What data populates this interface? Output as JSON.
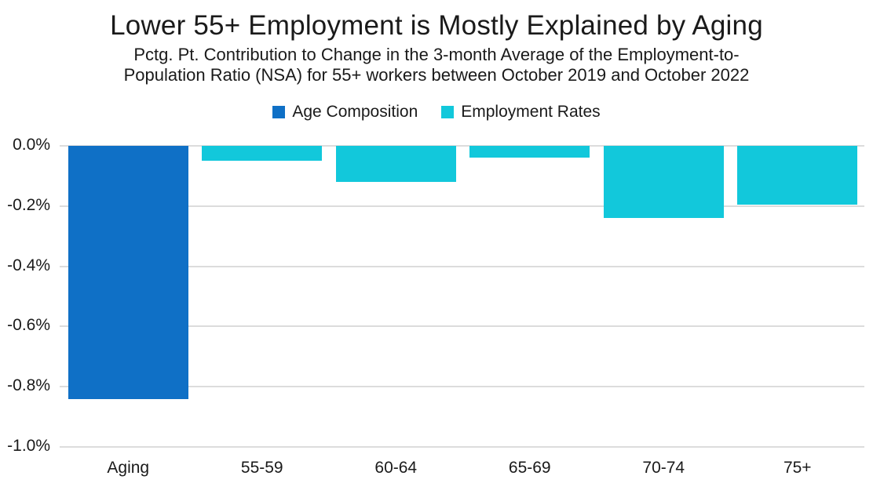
{
  "header": {
    "title": "Lower 55+ Employment is Mostly Explained by Aging",
    "subtitle_line1": "Pctg. Pt. Contribution to Change in the 3-month Average of the Employment-to-",
    "subtitle_line2": "Population Ratio (NSA) for 55+ workers between October 2019 and October 2022"
  },
  "colors": {
    "age_composition": "#0F70C6",
    "employment_rates": "#12C8DB",
    "gridline": "#DCDCDC",
    "text": "#1A1A1A"
  },
  "chart_data": {
    "type": "bar",
    "title": "Lower 55+ Employment is Mostly Explained by Aging",
    "subtitle": "Pctg. Pt. Contribution to Change in the 3-month Average of the Employment-to-Population Ratio (NSA) for 55+ workers between October 2019 and October 2022",
    "categories": [
      "Aging",
      "55-59",
      "60-64",
      "65-69",
      "70-74",
      "75+"
    ],
    "values": [
      -0.84,
      -0.05,
      -0.12,
      -0.04,
      -0.24,
      -0.195
    ],
    "series": [
      {
        "name": "Age Composition",
        "color": "#0F70C6"
      },
      {
        "name": "Employment Rates",
        "color": "#12C8DB"
      }
    ],
    "point_series": [
      0,
      1,
      1,
      1,
      1,
      1
    ],
    "ylim": [
      -1.0,
      0.0
    ],
    "yticks": [
      "0.0%",
      "-0.2%",
      "-0.4%",
      "-0.6%",
      "-0.8%",
      "-1.0%"
    ],
    "xlabel": "",
    "ylabel": "",
    "grid": true,
    "legend_position": "top"
  }
}
